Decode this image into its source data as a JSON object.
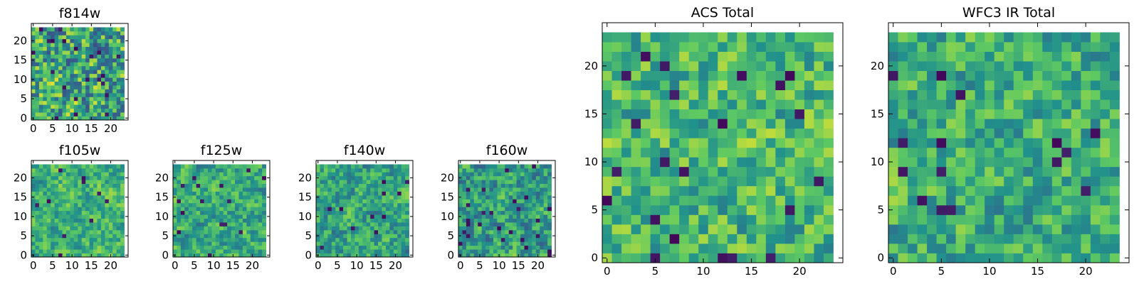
{
  "figure": {
    "type": "heatmap",
    "colormap": "viridis",
    "colormap_stops": [
      "#440154",
      "#3b528b",
      "#21918c",
      "#5ec962",
      "#fde725"
    ],
    "background": "#ffffff"
  },
  "chart_data": [
    {
      "type": "heatmap",
      "title": "f814w",
      "grid_size": 24,
      "xlim": [
        0,
        24
      ],
      "ylim": [
        0,
        24
      ],
      "xticks": [
        0,
        5,
        10,
        15,
        20
      ],
      "yticks": [
        0,
        5,
        10,
        15,
        20
      ],
      "seed": 11,
      "mean": 0.6,
      "spread": 0.4,
      "smooth": 0.2,
      "dark_prob": 0.03
    },
    {
      "type": "heatmap",
      "title": "f105w",
      "grid_size": 24,
      "xlim": [
        0,
        24
      ],
      "ylim": [
        0,
        24
      ],
      "xticks": [
        0,
        5,
        10,
        15,
        20
      ],
      "yticks": [
        0,
        5,
        10,
        15,
        20
      ],
      "seed": 23,
      "mean": 0.64,
      "spread": 0.3,
      "smooth": 0.45,
      "dark_prob": 0.02
    },
    {
      "type": "heatmap",
      "title": "f125w",
      "grid_size": 24,
      "xlim": [
        0,
        24
      ],
      "ylim": [
        0,
        24
      ],
      "xticks": [
        0,
        5,
        10,
        15,
        20
      ],
      "yticks": [
        0,
        5,
        10,
        15,
        20
      ],
      "seed": 37,
      "mean": 0.6,
      "spread": 0.32,
      "smooth": 0.45,
      "dark_prob": 0.02
    },
    {
      "type": "heatmap",
      "title": "f140w",
      "grid_size": 24,
      "xlim": [
        0,
        24
      ],
      "ylim": [
        0,
        24
      ],
      "xticks": [
        0,
        5,
        10,
        15,
        20
      ],
      "yticks": [
        0,
        5,
        10,
        15,
        20
      ],
      "seed": 41,
      "mean": 0.58,
      "spread": 0.34,
      "smooth": 0.45,
      "dark_prob": 0.03
    },
    {
      "type": "heatmap",
      "title": "f160w",
      "grid_size": 24,
      "xlim": [
        0,
        24
      ],
      "ylim": [
        0,
        24
      ],
      "xticks": [
        0,
        5,
        10,
        15,
        20
      ],
      "yticks": [
        0,
        5,
        10,
        15,
        20
      ],
      "seed": 53,
      "mean": 0.56,
      "spread": 0.36,
      "smooth": 0.45,
      "dark_prob": 0.035
    },
    {
      "type": "heatmap",
      "title": "ACS Total",
      "grid_size": 24,
      "xlim": [
        0,
        24
      ],
      "ylim": [
        0,
        24
      ],
      "xticks": [
        0,
        5,
        10,
        15,
        20
      ],
      "yticks": [
        0,
        5,
        10,
        15,
        20
      ],
      "seed": 67,
      "mean": 0.66,
      "spread": 0.3,
      "smooth": 0.3,
      "dark_prob": 0.025
    },
    {
      "type": "heatmap",
      "title": "WFC3 IR Total",
      "grid_size": 24,
      "xlim": [
        0,
        24
      ],
      "ylim": [
        0,
        24
      ],
      "xticks": [
        0,
        5,
        10,
        15,
        20
      ],
      "yticks": [
        0,
        5,
        10,
        15,
        20
      ],
      "seed": 79,
      "mean": 0.62,
      "spread": 0.28,
      "smooth": 0.3,
      "dark_prob": 0.03
    }
  ]
}
